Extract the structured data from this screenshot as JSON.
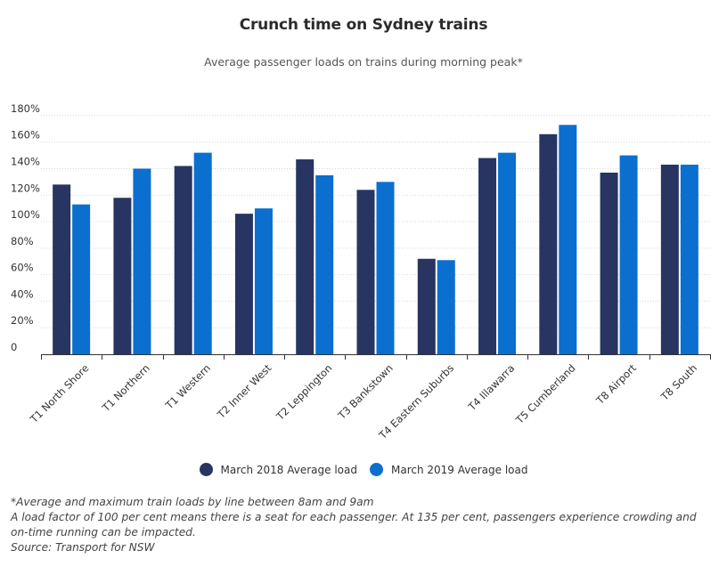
{
  "chart_data": {
    "type": "bar",
    "title": "Crunch time on Sydney trains",
    "subtitle": "Average passenger loads on trains during morning peak*",
    "categories": [
      "T1 North Shore",
      "T1 Northern",
      "T1 Western",
      "T2 Inner West",
      "T2 Leppington",
      "T3 Bankstown",
      "T4 Eastern Suburbs",
      "T4 Illawarra",
      "T5 Cumberland",
      "T8 Airport",
      "T8 South"
    ],
    "series": [
      {
        "name": "March 2018 Average load",
        "color": "#283562",
        "values": [
          128,
          118,
          142,
          106,
          147,
          124,
          72,
          148,
          166,
          137,
          143
        ]
      },
      {
        "name": "March 2019 Average load",
        "color": "#0b6fd0",
        "values": [
          113,
          140,
          152,
          110,
          135,
          130,
          71,
          152,
          173,
          150,
          143
        ]
      }
    ],
    "yticks": [
      "0",
      "20%",
      "40%",
      "60%",
      "80%",
      "100%",
      "120%",
      "140%",
      "160%",
      "180%"
    ],
    "ylim": [
      0,
      190
    ],
    "grid": true,
    "legend_position": "bottom-center"
  },
  "notes": [
    "*Average and maximum train loads by line between 8am and 9am",
    "A load factor of 100 per cent means there is a seat for each passenger. At 135 per cent, passengers experience crowding and on-time running can be impacted.",
    "Source: Transport for NSW"
  ]
}
